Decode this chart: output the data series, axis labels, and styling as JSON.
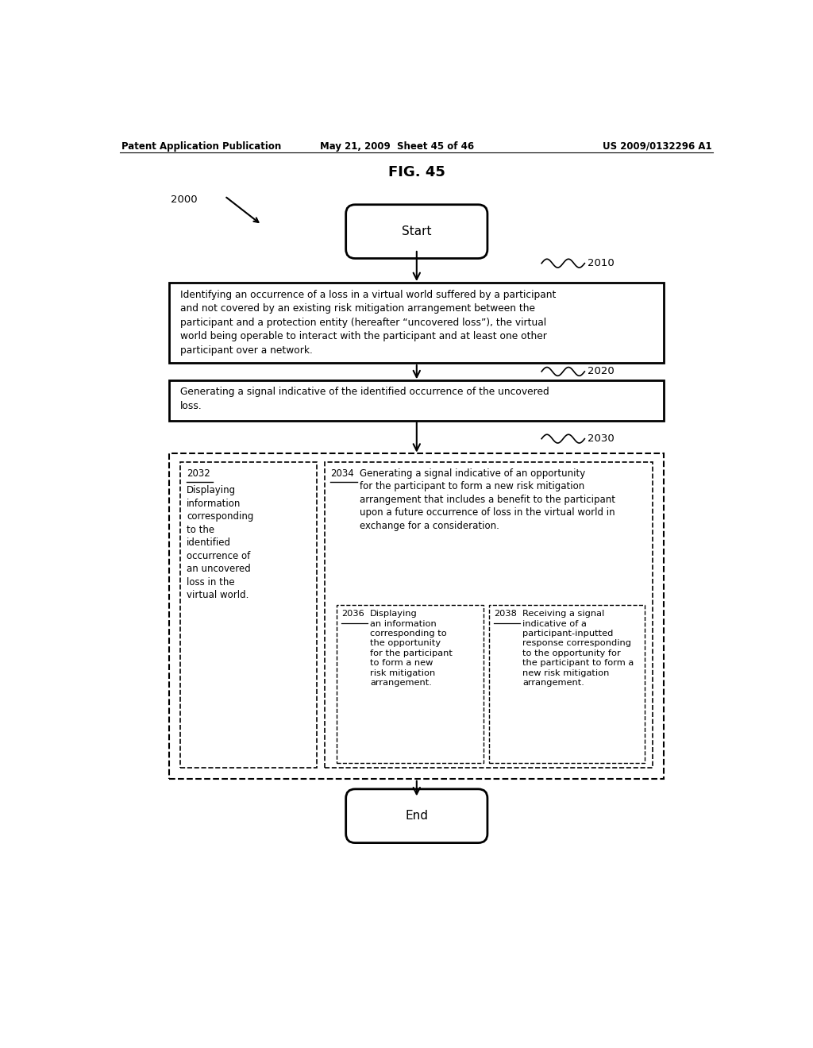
{
  "bg_color": "#ffffff",
  "header_left": "Patent Application Publication",
  "header_mid": "May 21, 2009  Sheet 45 of 46",
  "header_right": "US 2009/0132296 A1",
  "fig_title": "FIG. 45",
  "label_2000": "2000",
  "label_2010": "2010",
  "label_2020": "2020",
  "label_2030": "2030",
  "label_2032": "2032",
  "label_2034": "2034",
  "label_2036": "2036",
  "label_2038": "2038",
  "start_text": "Start",
  "end_text": "End",
  "box1_text": "Identifying an occurrence of a loss in a virtual world suffered by a participant\nand not covered by an existing risk mitigation arrangement between the\nparticipant and a protection entity (hereafter “uncovered loss”), the virtual\nworld being operable to interact with the participant and at least one other\nparticipant over a network.",
  "box2_text": "Generating a signal indicative of the identified occurrence of the uncovered\nloss.",
  "box3_body": "Displaying\ninformation\ncorresponding\nto the\nidentified\noccurrence of\nan uncovered\nloss in the\nvirtual world.",
  "box4_body": "Generating a signal indicative of an opportunity\nfor the participant to form a new risk mitigation\narrangement that includes a benefit to the participant\nupon a future occurrence of loss in the virtual world in\nexchange for a consideration.",
  "box5_body": "Displaying\nan information\ncorresponding to\nthe opportunity\nfor the participant\nto form a new\nrisk mitigation\narrangement.",
  "box6_body": "Receiving a signal\nindicative of a\nparticipant-inputted\nresponse corresponding\nto the opportunity for\nthe participant to form a\nnew risk mitigation\narrangement."
}
